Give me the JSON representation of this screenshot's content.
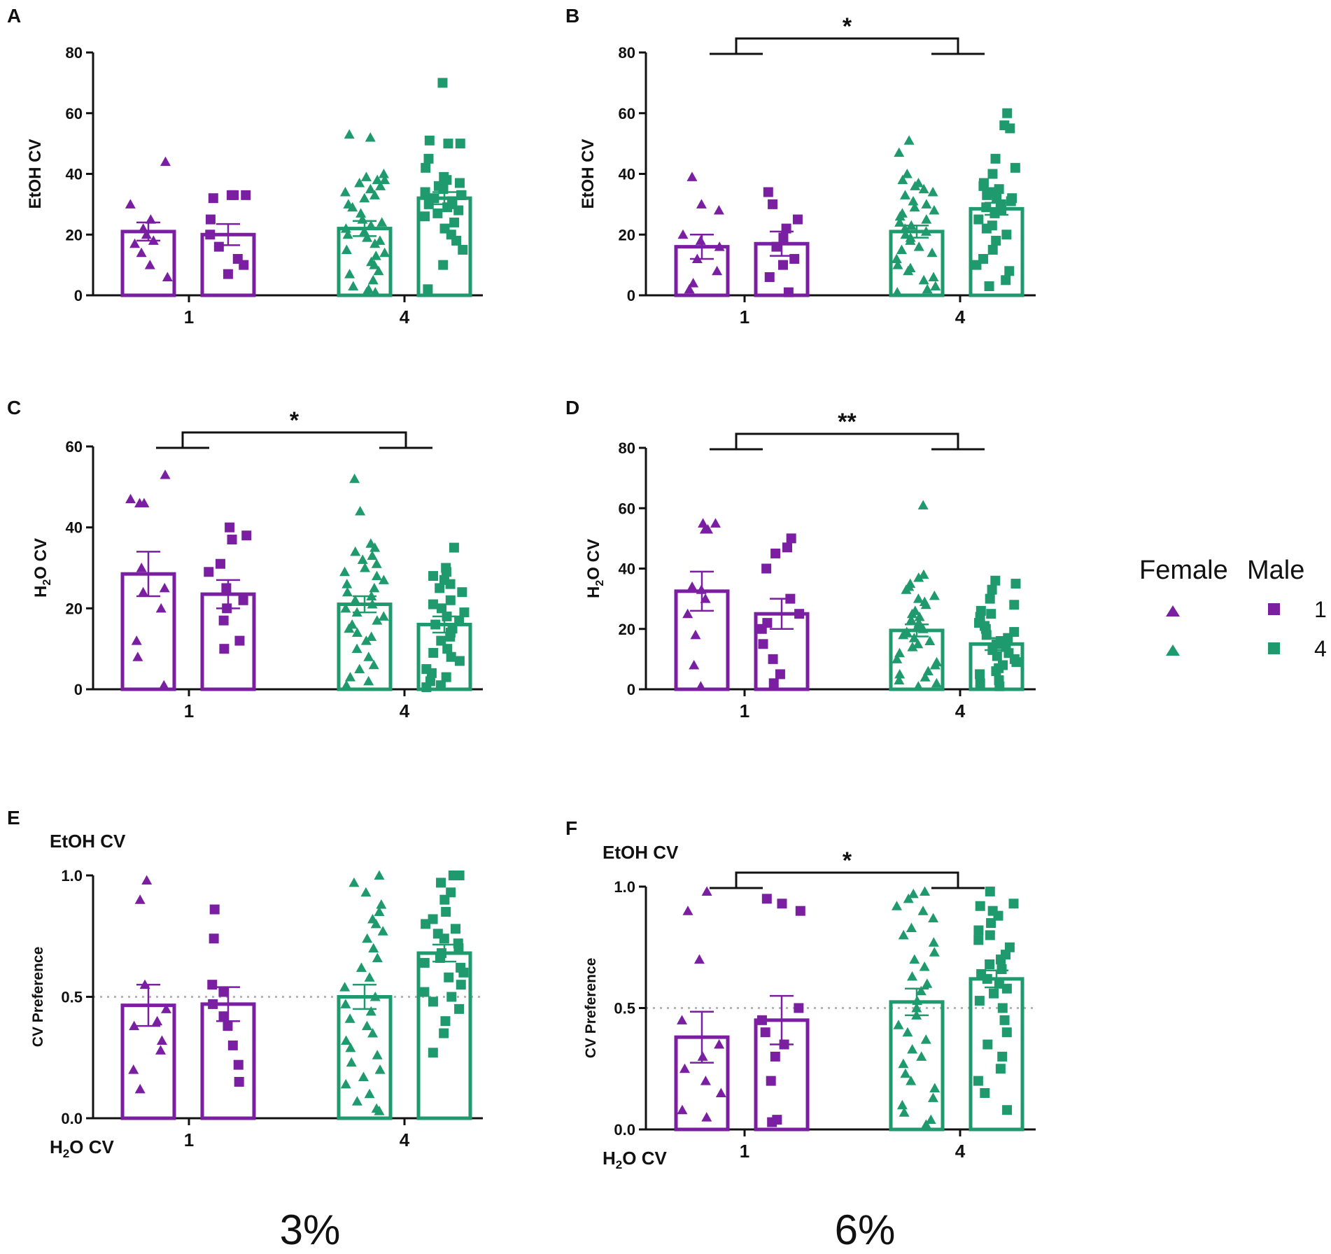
{
  "colors": {
    "line1": "#7B1FA2",
    "line4": "#1E9A6E",
    "axis": "#111111",
    "refline": "#b5b5b5"
  },
  "legend": {
    "female_label": "Female",
    "male_label": "Male",
    "entries": [
      {
        "line": "1",
        "color": "#7B1FA2"
      },
      {
        "line": "4",
        "color": "#1E9A6E"
      }
    ]
  },
  "concentrations": [
    "3%",
    "6%"
  ],
  "chart_data": [
    {
      "panel": "A",
      "type": "bar",
      "ylabel": "EtOH CV",
      "ylim": [
        0,
        80
      ],
      "yticks": [
        "0",
        "20",
        "40",
        "60",
        "80"
      ],
      "categories": [
        "1",
        "4"
      ],
      "series": [
        {
          "name": "Female line 1",
          "sex": "female",
          "line": "1",
          "mean": 21,
          "sem": 3,
          "points": [
            44,
            30,
            25,
            22,
            20,
            18,
            17,
            14,
            10,
            6
          ]
        },
        {
          "name": "Male line 1",
          "sex": "male",
          "line": "1",
          "mean": 20,
          "sem": 3.5,
          "points": [
            33,
            33,
            33,
            32,
            25,
            20,
            16,
            12,
            10,
            7
          ]
        },
        {
          "name": "Female line 4",
          "sex": "female",
          "line": "4",
          "mean": 22,
          "sem": 2.5,
          "points": [
            53,
            52,
            40,
            39,
            38,
            38,
            37,
            36,
            35,
            34,
            33,
            32,
            30,
            29,
            27,
            25,
            24,
            23,
            22,
            21,
            20,
            19,
            18,
            17,
            15,
            14,
            13,
            11,
            10,
            8,
            7,
            5,
            3,
            2,
            1,
            1
          ]
        },
        {
          "name": "Male line 4",
          "sex": "male",
          "line": "4",
          "mean": 32,
          "sem": 2,
          "points": [
            70,
            51,
            50,
            50,
            45,
            42,
            39,
            38,
            37,
            36,
            35,
            34,
            33,
            33,
            32,
            31,
            30,
            30,
            29,
            28,
            27,
            26,
            24,
            22,
            20,
            18,
            15,
            10,
            2
          ]
        }
      ]
    },
    {
      "panel": "B",
      "type": "bar",
      "ylabel": "EtOH CV",
      "ylim": [
        0,
        80
      ],
      "yticks": [
        "0",
        "20",
        "40",
        "60",
        "80"
      ],
      "categories": [
        "1",
        "4"
      ],
      "significance": "*",
      "series": [
        {
          "name": "Female line 1",
          "sex": "female",
          "line": "1",
          "mean": 16,
          "sem": 4,
          "points": [
            39,
            30,
            28,
            20,
            18,
            16,
            12,
            8,
            4,
            2
          ]
        },
        {
          "name": "Male line 1",
          "sex": "male",
          "line": "1",
          "mean": 17,
          "sem": 4,
          "points": [
            34,
            30,
            25,
            22,
            19,
            16,
            12,
            10,
            6,
            1
          ]
        },
        {
          "name": "Female line 4",
          "sex": "female",
          "line": "4",
          "mean": 21,
          "sem": 2,
          "points": [
            51,
            47,
            40,
            38,
            37,
            36,
            35,
            34,
            33,
            31,
            30,
            29,
            28,
            27,
            26,
            25,
            24,
            23,
            22,
            21,
            20,
            19,
            18,
            16,
            15,
            14,
            12,
            10,
            9,
            8,
            6,
            5,
            3,
            2,
            1
          ]
        },
        {
          "name": "Male line 4",
          "sex": "male",
          "line": "4",
          "mean": 28.5,
          "sem": 2,
          "points": [
            60,
            56,
            55,
            45,
            42,
            40,
            37,
            36,
            35,
            34,
            33,
            32,
            32,
            31,
            30,
            29,
            28,
            27,
            25,
            23,
            22,
            20,
            18,
            15,
            12,
            10,
            8,
            5,
            3
          ]
        }
      ]
    },
    {
      "panel": "C",
      "type": "bar",
      "ylabel": "H2O CV",
      "ylim": [
        0,
        60
      ],
      "yticks": [
        "0",
        "20",
        "40",
        "60"
      ],
      "categories": [
        "1",
        "4"
      ],
      "significance": "*",
      "series": [
        {
          "name": "Female line 1",
          "sex": "female",
          "line": "1",
          "mean": 28.5,
          "sem": 5.5,
          "points": [
            53,
            47,
            46,
            46,
            30,
            25,
            24,
            20,
            12,
            8,
            1
          ]
        },
        {
          "name": "Male line 1",
          "sex": "male",
          "line": "1",
          "mean": 23.5,
          "sem": 3.5,
          "points": [
            40,
            38,
            37,
            31,
            29,
            25,
            22,
            20,
            17,
            12,
            10
          ]
        },
        {
          "name": "Female line 4",
          "sex": "female",
          "line": "4",
          "mean": 21,
          "sem": 2,
          "points": [
            52,
            44,
            36,
            35,
            34,
            33,
            32,
            31,
            30,
            29,
            28,
            27,
            26,
            25,
            24,
            23,
            22,
            21,
            20,
            19,
            18,
            17,
            16,
            15,
            14,
            13,
            12,
            10,
            8,
            6,
            5,
            3,
            2,
            1
          ]
        },
        {
          "name": "Male line 4",
          "sex": "male",
          "line": "4",
          "mean": 16,
          "sem": 2,
          "points": [
            35,
            30,
            29,
            28,
            27,
            26,
            25,
            24,
            22,
            21,
            20,
            19,
            18,
            17,
            16,
            15,
            14,
            13,
            12,
            10,
            9,
            8,
            7,
            5,
            4,
            3,
            2,
            1,
            0.5
          ]
        }
      ]
    },
    {
      "panel": "D",
      "type": "bar",
      "ylabel": "H2O CV",
      "ylim": [
        0,
        80
      ],
      "yticks": [
        "0",
        "20",
        "40",
        "60",
        "80"
      ],
      "categories": [
        "1",
        "4"
      ],
      "significance": "**",
      "series": [
        {
          "name": "Female line 1",
          "sex": "female",
          "line": "1",
          "mean": 32.5,
          "sem": 6.5,
          "points": [
            55,
            55,
            53,
            53,
            34,
            33,
            30,
            25,
            18,
            8,
            1
          ]
        },
        {
          "name": "Male line 1",
          "sex": "male",
          "line": "1",
          "mean": 25,
          "sem": 5,
          "points": [
            50,
            47,
            45,
            40,
            30,
            25,
            22,
            20,
            15,
            10,
            5,
            2
          ]
        },
        {
          "name": "Female line 4",
          "sex": "female",
          "line": "4",
          "mean": 19.5,
          "sem": 2,
          "points": [
            61,
            38,
            37,
            35,
            34,
            33,
            31,
            30,
            29,
            28,
            26,
            25,
            24,
            23,
            22,
            21,
            20,
            19,
            18,
            17,
            16,
            15,
            14,
            12,
            10,
            9,
            8,
            6,
            5,
            4,
            3,
            2,
            1
          ]
        },
        {
          "name": "Male line 4",
          "sex": "male",
          "line": "4",
          "mean": 15,
          "sem": 2,
          "points": [
            36,
            35,
            33,
            30,
            28,
            26,
            25,
            24,
            22,
            21,
            20,
            19,
            18,
            17,
            16,
            15,
            14,
            13,
            12,
            11,
            10,
            9,
            8,
            7,
            6,
            5,
            3,
            2,
            1
          ]
        }
      ]
    },
    {
      "panel": "E",
      "type": "bar",
      "ylabel": "CV Preference",
      "ylim": [
        0,
        1.0
      ],
      "yticks": [
        "0.0",
        "0.5",
        "1.0"
      ],
      "top_label": "EtOH CV",
      "bottom_label": "H2O CV",
      "reference_line": 0.5,
      "categories": [
        "1",
        "4"
      ],
      "series": [
        {
          "name": "Female line 1",
          "sex": "female",
          "line": "1",
          "mean": 0.465,
          "sem": 0.085,
          "points": [
            0.98,
            0.9,
            0.55,
            0.45,
            0.4,
            0.38,
            0.32,
            0.28,
            0.2,
            0.12
          ]
        },
        {
          "name": "Male line 1",
          "sex": "male",
          "line": "1",
          "mean": 0.47,
          "sem": 0.07,
          "points": [
            0.86,
            0.74,
            0.55,
            0.52,
            0.47,
            0.42,
            0.38,
            0.3,
            0.22,
            0.15
          ]
        },
        {
          "name": "Female line 4",
          "sex": "female",
          "line": "4",
          "mean": 0.5,
          "sem": 0.05,
          "points": [
            1.0,
            0.97,
            0.93,
            0.88,
            0.85,
            0.82,
            0.8,
            0.77,
            0.74,
            0.7,
            0.66,
            0.62,
            0.58,
            0.54,
            0.5,
            0.47,
            0.44,
            0.41,
            0.38,
            0.35,
            0.32,
            0.29,
            0.26,
            0.23,
            0.2,
            0.17,
            0.14,
            0.1,
            0.07,
            0.04,
            0.03
          ]
        },
        {
          "name": "Male line 4",
          "sex": "male",
          "line": "4",
          "mean": 0.68,
          "sem": 0.035,
          "points": [
            1.0,
            1.0,
            0.97,
            0.93,
            0.9,
            0.85,
            0.82,
            0.8,
            0.78,
            0.76,
            0.74,
            0.72,
            0.7,
            0.68,
            0.66,
            0.64,
            0.62,
            0.6,
            0.58,
            0.55,
            0.52,
            0.5,
            0.48,
            0.45,
            0.4,
            0.35,
            0.27
          ]
        }
      ]
    },
    {
      "panel": "F",
      "type": "bar",
      "ylabel": "CV Preference",
      "ylim": [
        0,
        1.0
      ],
      "yticks": [
        "0.0",
        "0.5",
        "1.0"
      ],
      "top_label": "EtOH CV",
      "bottom_label": "H2O CV",
      "reference_line": 0.5,
      "categories": [
        "1",
        "4"
      ],
      "significance": "*",
      "series": [
        {
          "name": "Female line 1",
          "sex": "female",
          "line": "1",
          "mean": 0.38,
          "sem": 0.105,
          "points": [
            0.98,
            0.9,
            0.7,
            0.45,
            0.35,
            0.3,
            0.25,
            0.2,
            0.15,
            0.08,
            0.05
          ]
        },
        {
          "name": "Male line 1",
          "sex": "male",
          "line": "1",
          "mean": 0.45,
          "sem": 0.1,
          "points": [
            0.95,
            0.93,
            0.9,
            0.5,
            0.45,
            0.4,
            0.35,
            0.3,
            0.2,
            0.04,
            0.03
          ]
        },
        {
          "name": "Female line 4",
          "sex": "female",
          "line": "4",
          "mean": 0.525,
          "sem": 0.055,
          "points": [
            0.98,
            0.97,
            0.95,
            0.92,
            0.9,
            0.87,
            0.83,
            0.8,
            0.77,
            0.73,
            0.7,
            0.67,
            0.63,
            0.6,
            0.57,
            0.53,
            0.5,
            0.47,
            0.43,
            0.4,
            0.37,
            0.33,
            0.3,
            0.27,
            0.23,
            0.2,
            0.17,
            0.13,
            0.1,
            0.07,
            0.04,
            0.02
          ]
        },
        {
          "name": "Male line 4",
          "sex": "male",
          "line": "4",
          "mean": 0.62,
          "sem": 0.035,
          "points": [
            0.98,
            0.93,
            0.92,
            0.9,
            0.88,
            0.85,
            0.82,
            0.8,
            0.78,
            0.75,
            0.72,
            0.7,
            0.68,
            0.66,
            0.64,
            0.62,
            0.6,
            0.58,
            0.56,
            0.53,
            0.5,
            0.45,
            0.4,
            0.35,
            0.3,
            0.25,
            0.2,
            0.15,
            0.08
          ]
        }
      ]
    }
  ]
}
